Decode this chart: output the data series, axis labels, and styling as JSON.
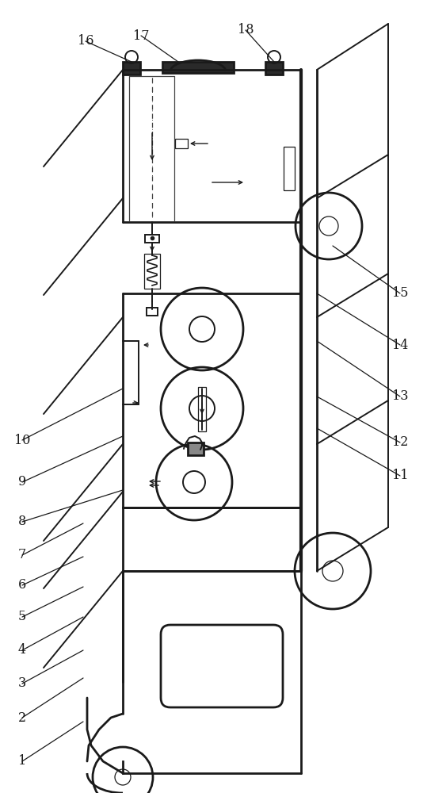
{
  "figsize": [
    5.39,
    10.0
  ],
  "dpi": 100,
  "bg_color": "#ffffff",
  "line_color": "#1a1a1a",
  "lw_main": 2.0,
  "lw_med": 1.4,
  "lw_thin": 0.9,
  "labels": [
    [
      "1",
      28,
      960
    ],
    [
      "2",
      28,
      905
    ],
    [
      "3",
      28,
      862
    ],
    [
      "4",
      28,
      820
    ],
    [
      "5",
      28,
      778
    ],
    [
      "6",
      28,
      738
    ],
    [
      "7",
      28,
      700
    ],
    [
      "8",
      28,
      658
    ],
    [
      "9",
      28,
      608
    ],
    [
      "10",
      28,
      555
    ],
    [
      "11",
      500,
      600
    ],
    [
      "12",
      500,
      558
    ],
    [
      "13",
      500,
      500
    ],
    [
      "14",
      500,
      435
    ],
    [
      "15",
      500,
      370
    ],
    [
      "16",
      108,
      52
    ],
    [
      "17",
      178,
      45
    ],
    [
      "18",
      310,
      38
    ]
  ]
}
